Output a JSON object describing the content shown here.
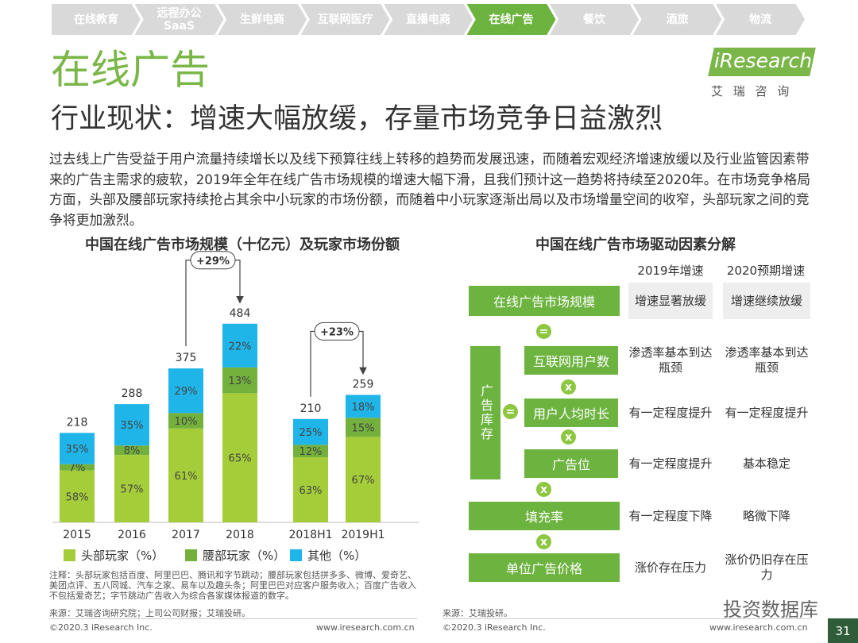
{
  "nav": [
    "在线教育",
    "远程办公\nSaaS",
    "生鲜电商",
    "互联网医疗",
    "直播电商",
    "在线广告",
    "餐饮",
    "酒旅",
    "物流"
  ],
  "header": {
    "title": "在线广告",
    "subtitle": "行业现状：增速大幅放缓，存量市场竞争日益激烈",
    "logo": "iResearch",
    "logo_cn": "艾 瑞 咨 询"
  },
  "body": "过去线上广告受益于用户流量持续增长以及线下预算往线上转移的趋势而发展迅速，而随着宏观经济增速放缓以及行业监管因素带来的广告主需求的疲软，2019年全年在线广告市场规模的增速大幅下滑，且我们预计这一趋势将持续至2020年。在市场竞争格局方面，头部及腰部玩家持续抢占其余中小玩家的市场份额，而随着中小玩家逐渐出局以及市场增量空间的收窄，头部玩家之间的竞争将更加激烈。",
  "chart_data": {
    "type": "bar",
    "title": "中国在线广告市场规模（十亿元）及玩家市场份额",
    "categories": [
      "2015",
      "2016",
      "2017",
      "2018",
      "2018H1",
      "2019H1"
    ],
    "totals": [
      218,
      288,
      375,
      484,
      210,
      259
    ],
    "series": [
      {
        "name": "头部玩家（%）",
        "color": "#a5cd39",
        "values": [
          58,
          57,
          61,
          65,
          63,
          67
        ],
        "value_labels": [
          "58%",
          "57%",
          "61%",
          "65%",
          "63%",
          "67%"
        ]
      },
      {
        "name": "腰部玩家（%）",
        "color": "#73b13c",
        "values": [
          7,
          8,
          10,
          13,
          12,
          15
        ],
        "value_labels": [
          "7%",
          "8%",
          "10%",
          "13%",
          "12%",
          "15%"
        ]
      },
      {
        "name": "其他（%）",
        "color": "#1fb5e8",
        "values": [
          35,
          35,
          29,
          22,
          25,
          18
        ],
        "value_labels": [
          "35%",
          "35%",
          "29%",
          "22%",
          "25%",
          "18%"
        ]
      }
    ],
    "annotations": [
      "+29%",
      "+23%"
    ],
    "legend": "bottom"
  },
  "notes": "注释：头部玩家包括百度、阿里巴巴、腾讯和字节跳动；腰部玩家包括拼多多、微博、爱奇艺、美团点评、五八同城、汽车之家、易车以及趣头条；阿里巴巴对应客户服务收入；百度广告收入不包括爱奇艺；字节跳动广告收入为综合各家媒体报道的数字。",
  "source_left": "来源：艾瑞咨询研究院；上司公司财报；艾瑞投研。",
  "factors": {
    "title": "中国在线广告市场驱动因素分解",
    "columns": [
      "2019年增速",
      "2020预期增速"
    ],
    "group": "广告库存",
    "rows": [
      {
        "label": "在线广告市场规模",
        "cells": [
          "增速显著放缓",
          "增速继续放缓"
        ]
      },
      {
        "label": "互联网用户数",
        "cells": [
          "渗透率基本到达瓶颈",
          "渗透率基本到达瓶颈"
        ]
      },
      {
        "label": "用户人均时长",
        "cells": [
          "有一定程度提升",
          "有一定程度提升"
        ]
      },
      {
        "label": "广告位",
        "cells": [
          "有一定程度提升",
          "基本稳定"
        ]
      },
      {
        "label": "填充率",
        "cells": [
          "有一定程度下降",
          "略微下降"
        ]
      },
      {
        "label": "单位广告价格",
        "cells": [
          "涨价存在压力",
          "涨价仍旧存在压力"
        ]
      }
    ],
    "operators": [
      "=",
      "=",
      "x",
      "x",
      "x",
      "x"
    ]
  },
  "source_right": "来源：艾瑞投研。",
  "footer": {
    "copyright": "©2020.3 iResearch Inc.",
    "url": "www.iresearch.com.cn",
    "watermark": "投资数据库",
    "page": "31"
  }
}
